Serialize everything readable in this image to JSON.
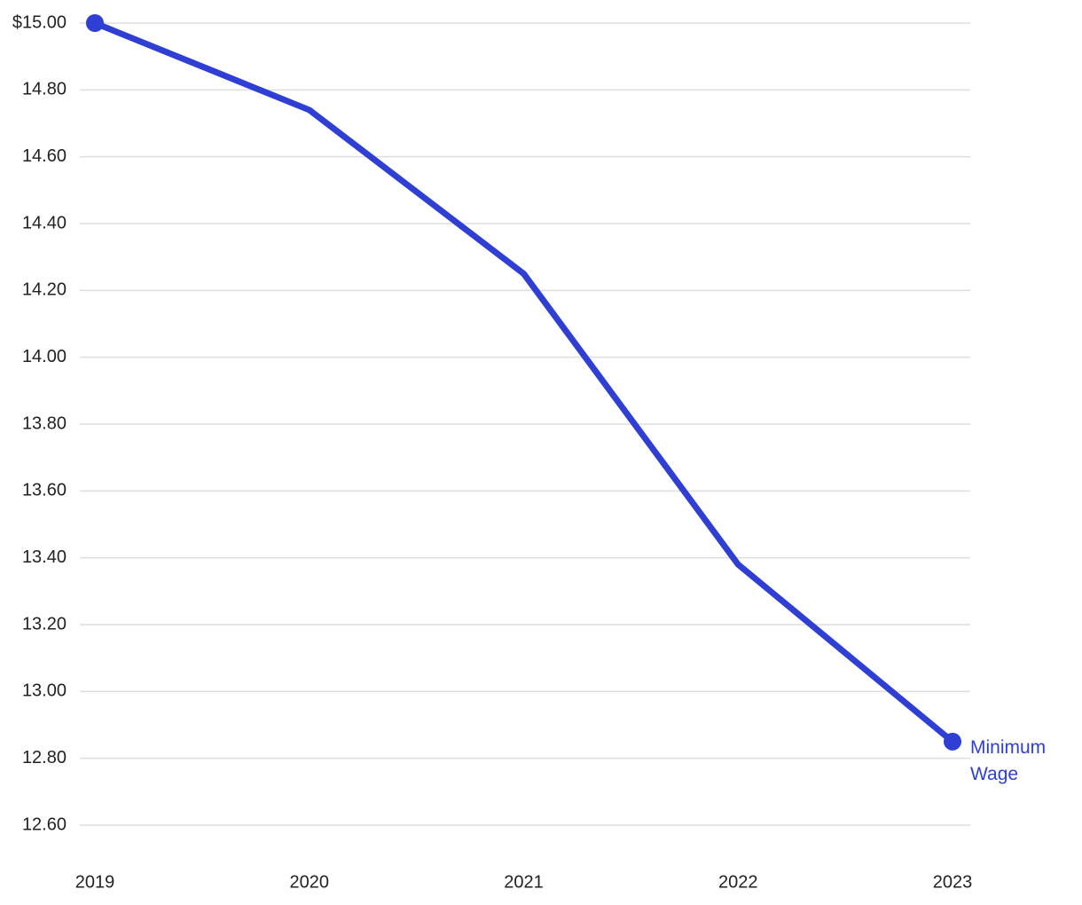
{
  "chart_data": {
    "type": "line",
    "x": [
      2019,
      2020,
      2021,
      2022,
      2023
    ],
    "series": [
      {
        "name": "Minimum Wage",
        "color": "#2f3fd3",
        "values": [
          15.0,
          14.74,
          14.25,
          13.38,
          12.85
        ]
      }
    ],
    "xlim": [
      2019,
      2023
    ],
    "ylim": [
      12.6,
      15
    ],
    "yticks": [
      {
        "value": 15,
        "label": "$15.00"
      },
      {
        "value": 14.8,
        "label": "14.80"
      },
      {
        "value": 14.6,
        "label": "14.60"
      },
      {
        "value": 14.4,
        "label": "14.40"
      },
      {
        "value": 14.2,
        "label": "14.20"
      },
      {
        "value": 14,
        "label": "14.00"
      },
      {
        "value": 13.8,
        "label": "13.80"
      },
      {
        "value": 13.6,
        "label": "13.60"
      },
      {
        "value": 13.4,
        "label": "13.40"
      },
      {
        "value": 13.2,
        "label": "13.20"
      },
      {
        "value": 13,
        "label": "13.00"
      },
      {
        "value": 12.8,
        "label": "12.80"
      },
      {
        "value": 12.6,
        "label": "12.60"
      }
    ],
    "grid": true
  }
}
